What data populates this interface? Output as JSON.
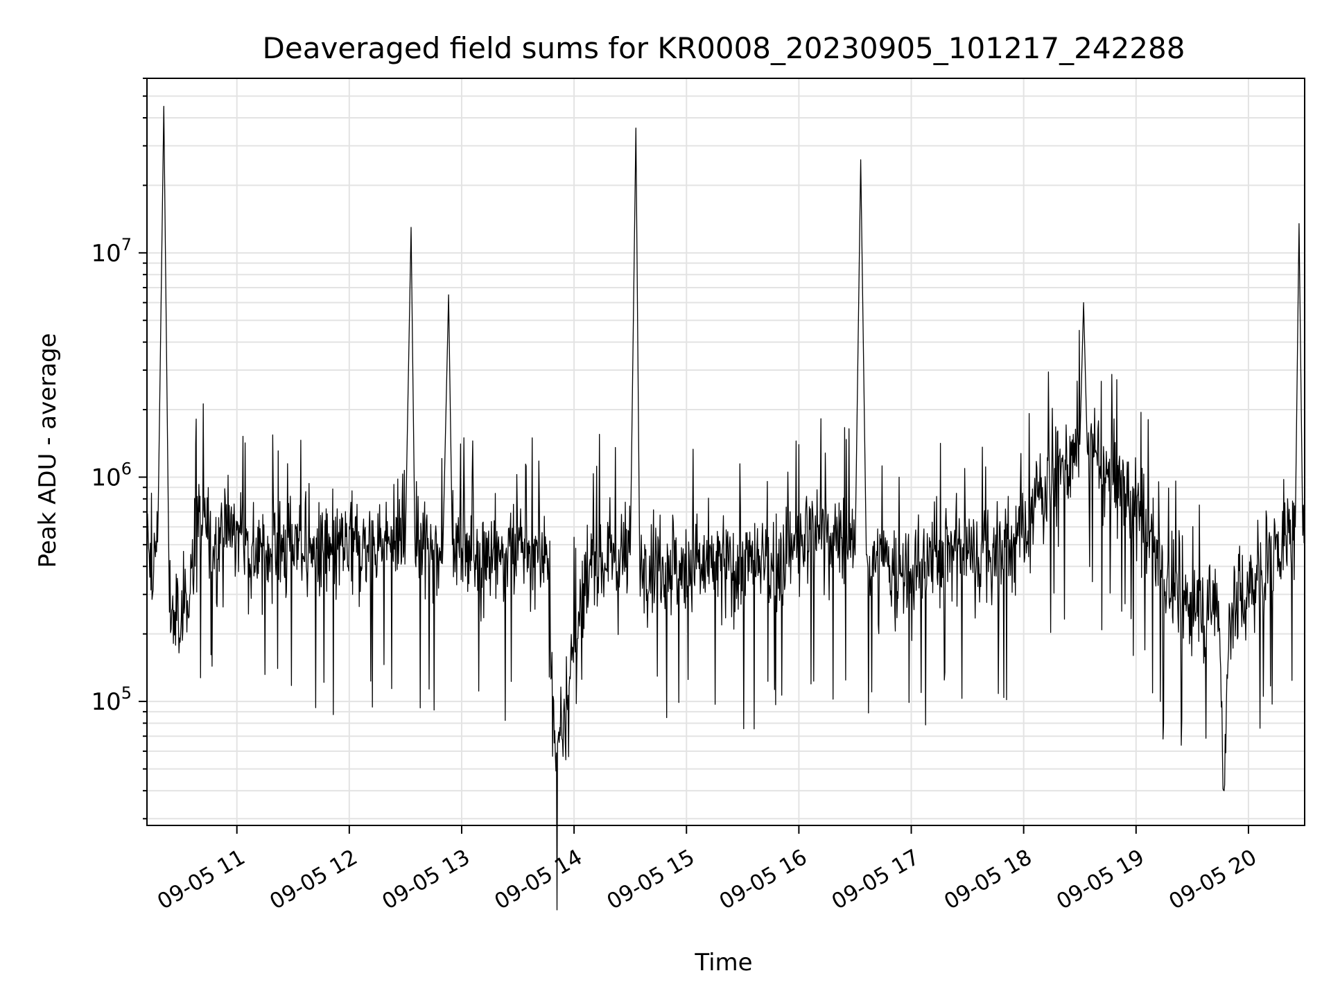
{
  "chart_data": {
    "type": "line",
    "title": "Deaveraged field sums for KR0008_20230905_101217_242288",
    "xlabel": "Time",
    "ylabel": "Peak ADU - average",
    "x_ticks": [
      "09-05 11",
      "09-05 12",
      "09-05 13",
      "09-05 14",
      "09-05 15",
      "09-05 16",
      "09-05 17",
      "09-05 18",
      "09-05 19",
      "09-05 20"
    ],
    "x_tick_times": [
      "2023-09-05 11:00",
      "2023-09-05 12:00",
      "2023-09-05 13:00",
      "2023-09-05 14:00",
      "2023-09-05 15:00",
      "2023-09-05 16:00",
      "2023-09-05 17:00",
      "2023-09-05 18:00",
      "2023-09-05 19:00",
      "2023-09-05 20:00"
    ],
    "y_tick_exponents": [
      "5",
      "6",
      "7"
    ],
    "y_tick_base": "10",
    "y_scale": "log",
    "ylim": [
      28000,
      60000000
    ],
    "xlim": [
      "2023-09-05 10:12",
      "2023-09-05 20:30"
    ],
    "grid": true,
    "line_color": "#000000",
    "series": [
      {
        "x": [
          "2023-09-05 10:12",
          "2023-09-05 10:15",
          "2023-09-05 10:18",
          "2023-09-05 10:21",
          "2023-09-05 10:24",
          "2023-09-05 10:27",
          "2023-09-05 10:30",
          "2023-09-05 10:33",
          "2023-09-05 10:36",
          "2023-09-05 10:40",
          "2023-09-05 10:45",
          "2023-09-05 10:55",
          "2023-09-05 11:10",
          "2023-09-05 11:30",
          "2023-09-05 11:50",
          "2023-09-05 12:10",
          "2023-09-05 12:30",
          "2023-09-05 12:33",
          "2023-09-05 12:35",
          "2023-09-05 12:37",
          "2023-09-05 12:50",
          "2023-09-05 12:53",
          "2023-09-05 12:55",
          "2023-09-05 13:20",
          "2023-09-05 13:45",
          "2023-09-05 13:50",
          "2023-09-05 14:10",
          "2023-09-05 14:30",
          "2023-09-05 14:33",
          "2023-09-05 14:35",
          "2023-09-05 14:38",
          "2023-09-05 15:00",
          "2023-09-05 15:20",
          "2023-09-05 15:42",
          "2023-09-05 15:55",
          "2023-09-05 16:10",
          "2023-09-05 16:30",
          "2023-09-05 16:33",
          "2023-09-05 16:36",
          "2023-09-05 16:45",
          "2023-09-05 17:00",
          "2023-09-05 17:20",
          "2023-09-05 17:40",
          "2023-09-05 18:00",
          "2023-09-05 18:10",
          "2023-09-05 18:20",
          "2023-09-05 18:30",
          "2023-09-05 18:32",
          "2023-09-05 18:34",
          "2023-09-05 18:45",
          "2023-09-05 19:00",
          "2023-09-05 19:15",
          "2023-09-05 19:30",
          "2023-09-05 19:44",
          "2023-09-05 19:47",
          "2023-09-05 19:50",
          "2023-09-05 20:00",
          "2023-09-05 20:10",
          "2023-09-05 20:20",
          "2023-09-05 20:25",
          "2023-09-05 20:27",
          "2023-09-05 20:29",
          "2023-09-05 20:30"
        ],
        "y": [
          500000,
          300000,
          700000,
          45000000,
          250000,
          250000,
          200000,
          300000,
          400000,
          700000,
          500000,
          600000,
          450000,
          500000,
          450000,
          500000,
          550000,
          13000000,
          550000,
          500000,
          500000,
          6500000,
          500000,
          450000,
          450000,
          58000,
          450000,
          450000,
          36000000,
          450000,
          450000,
          400000,
          400000,
          400000,
          450000,
          600000,
          450000,
          26000000,
          450000,
          400000,
          350000,
          500000,
          450000,
          550000,
          900000,
          1100000,
          1400000,
          6000000,
          1300000,
          1000000,
          800000,
          350000,
          250000,
          280000,
          40000,
          260000,
          300000,
          450000,
          550000,
          600000,
          13500000,
          550000,
          550000
        ]
      }
    ]
  }
}
